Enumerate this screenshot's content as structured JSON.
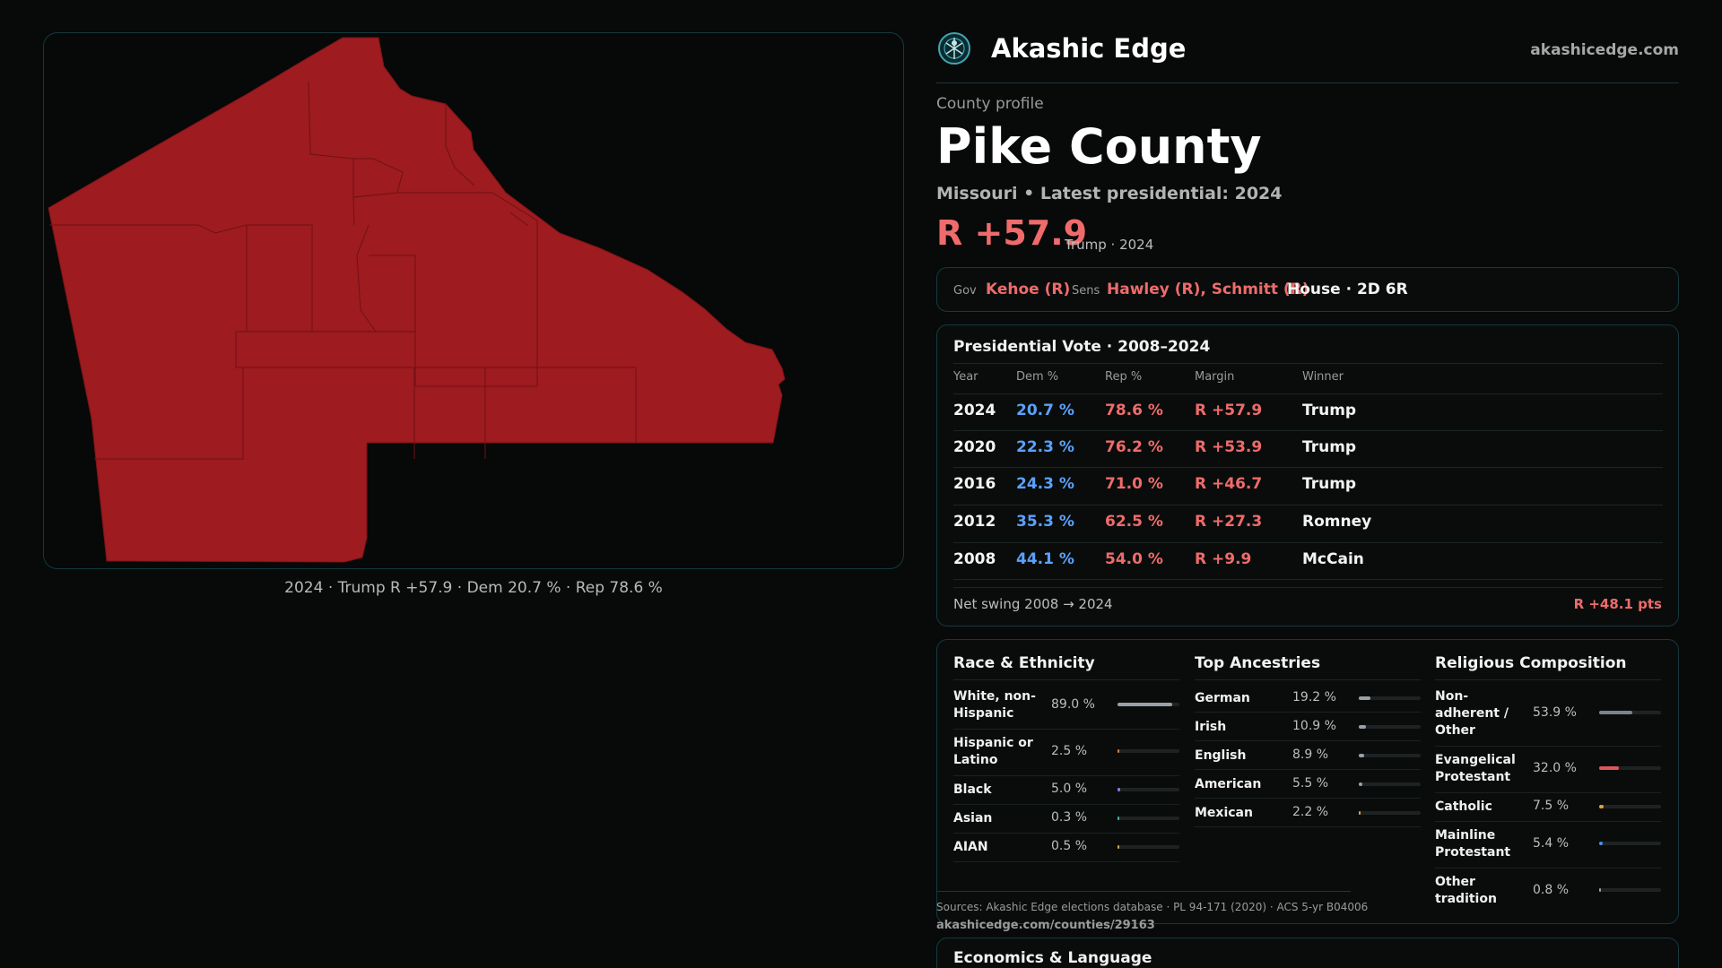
{
  "map": {
    "caption": "2024 · Trump R +57.9 · Dem 20.7 % · Rep 78.6 %",
    "fill_color": "#9e1b1f"
  },
  "header": {
    "logo_icon": "akashic-edge-logo-icon",
    "brand": "Akashic Edge",
    "site": "akashicedge.com"
  },
  "profile": {
    "label": "County profile",
    "name": "Pike County",
    "subtitle": "Missouri • Latest presidential: 2024",
    "margin": "R +57.9",
    "margin_detail": "Trump · 2024"
  },
  "officials": {
    "gov_label": "Gov",
    "gov_value": "Kehoe (R)",
    "sens_label": "Sens",
    "sens_value": "Hawley (R), Schmitt (R)",
    "house": "House · 2D 6R"
  },
  "presidential": {
    "title": "Presidential Vote · 2008–2024",
    "headers": [
      "Year",
      "Dem %",
      "Rep %",
      "Margin",
      "Winner"
    ],
    "rows": [
      {
        "year": "2024",
        "dem": "20.7 %",
        "rep": "78.6 %",
        "margin": "R +57.9",
        "winner": "Trump"
      },
      {
        "year": "2020",
        "dem": "22.3 %",
        "rep": "76.2 %",
        "margin": "R +53.9",
        "winner": "Trump"
      },
      {
        "year": "2016",
        "dem": "24.3 %",
        "rep": "71.0 %",
        "margin": "R +46.7",
        "winner": "Trump"
      },
      {
        "year": "2012",
        "dem": "35.3 %",
        "rep": "62.5 %",
        "margin": "R +27.3",
        "winner": "Romney"
      },
      {
        "year": "2008",
        "dem": "44.1 %",
        "rep": "54.0 %",
        "margin": "R +9.9",
        "winner": "McCain"
      }
    ],
    "swing_label": "Net swing 2008 → 2024",
    "swing_value": "R +48.1 pts"
  },
  "race": {
    "title": "Race & Ethnicity",
    "items": [
      {
        "label": "White, non-Hispanic",
        "value": "89.0 %",
        "pct": 89.0,
        "color": "#9aa0a6"
      },
      {
        "label": "Hispanic or Latino",
        "value": "2.5 %",
        "pct": 2.5,
        "color": "#e07a3a"
      },
      {
        "label": "Black",
        "value": "5.0 %",
        "pct": 5.0,
        "color": "#8c7ae6"
      },
      {
        "label": "Asian",
        "value": "0.3 %",
        "pct": 0.3,
        "color": "#3fb8a8"
      },
      {
        "label": "AIAN",
        "value": "0.5 %",
        "pct": 0.5,
        "color": "#c9a94a"
      }
    ]
  },
  "ancestry": {
    "title": "Top Ancestries",
    "items": [
      {
        "label": "German",
        "value": "19.2 %",
        "pct": 19.2,
        "color": "#9aa0a6"
      },
      {
        "label": "Irish",
        "value": "10.9 %",
        "pct": 10.9,
        "color": "#9aa0a6"
      },
      {
        "label": "English",
        "value": "8.9 %",
        "pct": 8.9,
        "color": "#9aa0a6"
      },
      {
        "label": "American",
        "value": "5.5 %",
        "pct": 5.5,
        "color": "#9aa0a6"
      },
      {
        "label": "Mexican",
        "value": "2.2 %",
        "pct": 2.2,
        "color": "#e0a23a"
      }
    ]
  },
  "religion": {
    "title": "Religious Composition",
    "items": [
      {
        "label": "Non-adherent / Other",
        "value": "53.9 %",
        "pct": 53.9,
        "color": "#7d838a"
      },
      {
        "label": "Evangelical Protestant",
        "value": "32.0 %",
        "pct": 32.0,
        "color": "#e0555b"
      },
      {
        "label": "Catholic",
        "value": "7.5 %",
        "pct": 7.5,
        "color": "#e0a23a"
      },
      {
        "label": "Mainline Protestant",
        "value": "5.4 %",
        "pct": 5.4,
        "color": "#4a8fe0"
      },
      {
        "label": "Other tradition",
        "value": "0.8 %",
        "pct": 0.8,
        "color": "#9aa0a6"
      }
    ]
  },
  "sources": {
    "text": "Sources: Akashic Edge elections database · PL 94-171 (2020) · ACS 5-yr B04006",
    "url": "akashicedge.com/counties/29163"
  },
  "economics": {
    "title": "Economics & Language"
  },
  "colors": {
    "republican": "#ef6b6b",
    "democrat": "#5aa2ff",
    "accent_border": "#15393d"
  }
}
